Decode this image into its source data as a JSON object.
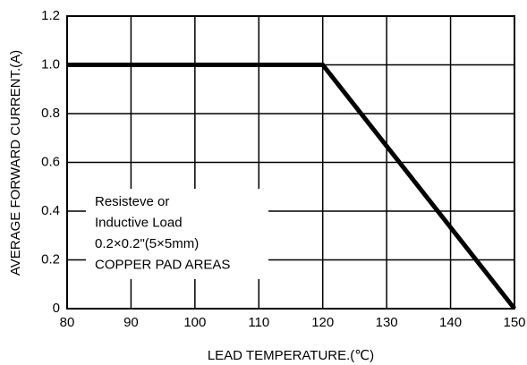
{
  "chart_data": {
    "type": "line",
    "x_label": "LEAD TEMPERATURE.(℃)",
    "y_label": "AVERAGE FORWARD CURRENT.(A)",
    "x": [
      80,
      120,
      150
    ],
    "values": [
      1,
      1,
      0
    ],
    "color": "#000000",
    "xlim": [
      80,
      150
    ],
    "xticks": [
      80,
      90,
      100,
      110,
      120,
      130,
      140,
      150
    ],
    "ylim": [
      0,
      1.2
    ],
    "yticks": [
      0,
      0.2,
      0.4,
      0.6,
      {
        "value": 0.8,
        "label": "0.8"
      },
      {
        "value": 1,
        "label": "1.0"
      },
      1.2
    ],
    "grid": true,
    "annotation": [
      "Resisteve or",
      "Inductive Load",
      "0.2×0.2\"(5×5mm)",
      "COPPER PAD AREAS"
    ]
  }
}
